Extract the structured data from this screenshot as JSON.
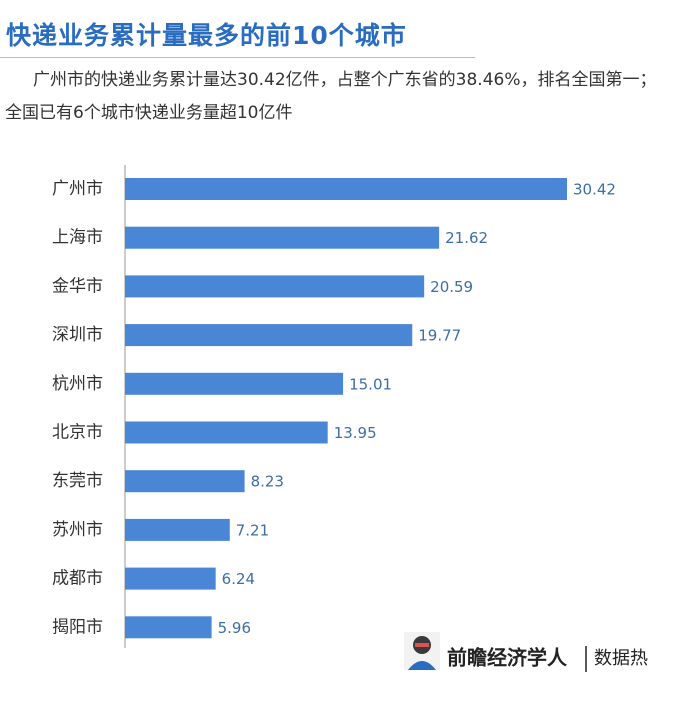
{
  "chart_data": {
    "type": "bar",
    "orientation": "horizontal",
    "title": "快递业务累计量最多的前10个城市",
    "subtitle": "广州市的快递业务累计量达30.42亿件，占整个广东省的38.46%，排名全国第一；全国已有6个城市快递业务量超10亿件",
    "categories": [
      "广州市",
      "上海市",
      "金华市",
      "深圳市",
      "杭州市",
      "北京市",
      "东莞市",
      "苏州市",
      "成都市",
      "揭阳市"
    ],
    "values": [
      30.42,
      21.62,
      20.59,
      19.77,
      15.01,
      13.95,
      8.23,
      7.21,
      6.24,
      5.96
    ],
    "color": "#4a86d6"
  },
  "footer": {
    "brand": "前瞻经济学人",
    "section": "数据热"
  }
}
